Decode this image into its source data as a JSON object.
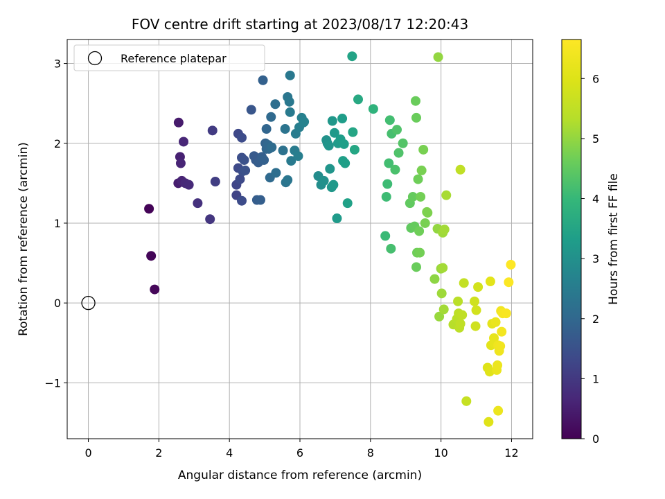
{
  "chart_data": {
    "type": "scatter",
    "title": "FOV centre drift starting at 2023/08/17 12:20:43",
    "xlabel": "Angular distance from reference (arcmin)",
    "ylabel": "Rotation from reference (arcmin)",
    "xlim": [
      -0.6,
      12.6
    ],
    "ylim": [
      -1.7,
      3.3
    ],
    "xticks": [
      "0",
      "2",
      "4",
      "6",
      "8",
      "10",
      "12"
    ],
    "yticks": [
      "−1",
      "0",
      "1",
      "2",
      "3"
    ],
    "grid": true,
    "legend": {
      "placement": "upper-left",
      "entries": [
        "Reference platepar"
      ]
    },
    "reference_point": {
      "x": 0,
      "y": 0
    },
    "colorbar": {
      "label": "Hours from first FF file",
      "min": 0,
      "max": 6.65,
      "ticks": [
        "0",
        "1",
        "2",
        "3",
        "4",
        "5",
        "6"
      ],
      "colormap": "viridis"
    },
    "series": [
      {
        "points": [
          [
            1.72,
            1.18,
            0.05
          ],
          [
            1.78,
            0.59,
            0.08
          ],
          [
            1.88,
            0.17,
            0.1
          ],
          [
            2.56,
            2.26,
            0.45
          ],
          [
            2.55,
            1.5,
            0.5
          ],
          [
            2.6,
            1.83,
            0.55
          ],
          [
            2.65,
            1.53,
            0.6
          ],
          [
            2.62,
            1.75,
            0.62
          ],
          [
            2.7,
            2.02,
            0.65
          ],
          [
            2.75,
            1.5,
            0.68
          ],
          [
            2.85,
            1.48,
            0.7
          ],
          [
            3.1,
            1.25,
            0.85
          ],
          [
            3.45,
            1.05,
            0.95
          ],
          [
            3.52,
            2.16,
            1.05
          ],
          [
            3.6,
            1.52,
            1.1
          ],
          [
            4.2,
            1.35,
            1.2
          ],
          [
            4.2,
            1.48,
            1.25
          ],
          [
            4.25,
            2.12,
            1.3
          ],
          [
            4.25,
            1.69,
            1.35
          ],
          [
            4.3,
            1.55,
            1.35
          ],
          [
            4.35,
            1.28,
            1.4
          ],
          [
            4.35,
            2.07,
            1.4
          ],
          [
            4.35,
            1.82,
            1.45
          ],
          [
            4.38,
            1.65,
            1.45
          ],
          [
            4.42,
            1.79,
            1.5
          ],
          [
            4.45,
            1.66,
            1.5
          ],
          [
            4.62,
            2.42,
            1.6
          ],
          [
            4.7,
            1.84,
            1.7
          ],
          [
            4.75,
            1.79,
            1.7
          ],
          [
            4.78,
            1.29,
            1.75
          ],
          [
            4.82,
            1.76,
            1.75
          ],
          [
            4.88,
            1.29,
            1.8
          ],
          [
            4.92,
            1.83,
            1.8
          ],
          [
            4.95,
            2.79,
            1.85
          ],
          [
            4.98,
            1.79,
            1.85
          ],
          [
            5.02,
            2.0,
            1.9
          ],
          [
            5.05,
            1.93,
            1.95
          ],
          [
            5.05,
            2.18,
            1.95
          ],
          [
            5.1,
            1.98,
            2.0
          ],
          [
            5.12,
            1.93,
            2.0
          ],
          [
            5.15,
            1.57,
            2.05
          ],
          [
            5.18,
            2.33,
            2.05
          ],
          [
            5.2,
            1.95,
            2.1
          ],
          [
            5.3,
            2.49,
            2.15
          ],
          [
            5.32,
            1.63,
            2.15
          ],
          [
            5.52,
            1.91,
            2.25
          ],
          [
            5.58,
            2.18,
            2.3
          ],
          [
            5.6,
            1.51,
            2.3
          ],
          [
            5.65,
            1.54,
            2.35
          ],
          [
            5.65,
            2.58,
            2.35
          ],
          [
            5.7,
            2.52,
            2.4
          ],
          [
            5.72,
            2.85,
            2.4
          ],
          [
            5.72,
            2.39,
            2.45
          ],
          [
            5.75,
            1.78,
            2.45
          ],
          [
            5.85,
            1.91,
            2.5
          ],
          [
            5.88,
            2.12,
            2.5
          ],
          [
            5.95,
            1.84,
            2.55
          ],
          [
            5.98,
            2.2,
            2.55
          ],
          [
            6.05,
            2.32,
            2.6
          ],
          [
            6.1,
            2.26,
            2.6
          ],
          [
            6.12,
            2.27,
            2.65
          ],
          [
            6.52,
            1.59,
            2.9
          ],
          [
            6.6,
            1.48,
            2.95
          ],
          [
            6.68,
            1.53,
            3.0
          ],
          [
            6.75,
            2.04,
            3.05
          ],
          [
            6.78,
            2.0,
            3.05
          ],
          [
            6.82,
            1.97,
            3.1
          ],
          [
            6.85,
            1.68,
            3.1
          ],
          [
            6.9,
            1.45,
            3.15
          ],
          [
            6.92,
            2.28,
            3.15
          ],
          [
            6.95,
            1.48,
            3.2
          ],
          [
            6.98,
            2.13,
            3.2
          ],
          [
            7.05,
            1.06,
            3.25
          ],
          [
            7.08,
            2.0,
            3.25
          ],
          [
            7.15,
            2.05,
            3.3
          ],
          [
            7.2,
            2.31,
            3.3
          ],
          [
            7.22,
            1.78,
            3.35
          ],
          [
            7.25,
            1.99,
            3.35
          ],
          [
            7.28,
            1.75,
            3.35
          ],
          [
            7.35,
            1.25,
            3.4
          ],
          [
            7.48,
            3.09,
            3.45
          ],
          [
            7.5,
            2.14,
            3.5
          ],
          [
            7.55,
            1.92,
            3.55
          ],
          [
            7.65,
            2.55,
            3.6
          ],
          [
            8.08,
            2.43,
            3.85
          ],
          [
            8.42,
            0.84,
            4.05
          ],
          [
            8.45,
            1.33,
            4.1
          ],
          [
            8.48,
            1.49,
            4.1
          ],
          [
            8.52,
            1.75,
            4.15
          ],
          [
            8.55,
            2.29,
            4.15
          ],
          [
            8.58,
            0.68,
            4.2
          ],
          [
            8.6,
            2.12,
            4.2
          ],
          [
            8.7,
            1.67,
            4.25
          ],
          [
            8.75,
            2.17,
            4.3
          ],
          [
            8.8,
            1.88,
            4.3
          ],
          [
            8.92,
            2.0,
            4.35
          ],
          [
            9.12,
            1.25,
            4.5
          ],
          [
            9.15,
            0.94,
            4.5
          ],
          [
            9.2,
            1.33,
            4.55
          ],
          [
            9.25,
            0.96,
            4.55
          ],
          [
            9.28,
            2.53,
            4.6
          ],
          [
            9.3,
            2.32,
            4.6
          ],
          [
            9.3,
            0.45,
            4.6
          ],
          [
            9.32,
            0.63,
            4.65
          ],
          [
            9.35,
            1.55,
            4.65
          ],
          [
            9.38,
            0.9,
            4.65
          ],
          [
            9.4,
            0.63,
            4.7
          ],
          [
            9.42,
            1.33,
            4.7
          ],
          [
            9.45,
            1.66,
            4.75
          ],
          [
            9.5,
            1.92,
            4.75
          ],
          [
            9.55,
            1.0,
            4.75
          ],
          [
            9.6,
            1.14,
            4.8
          ],
          [
            9.62,
            1.13,
            4.8
          ],
          [
            9.82,
            0.3,
            4.95
          ],
          [
            9.9,
            0.93,
            5.0
          ],
          [
            9.92,
            3.08,
            5.0
          ],
          [
            9.95,
            -0.17,
            5.05
          ],
          [
            10.0,
            0.43,
            5.05
          ],
          [
            10.02,
            0.12,
            5.1
          ],
          [
            10.05,
            0.88,
            5.1
          ],
          [
            10.05,
            0.44,
            5.15
          ],
          [
            10.08,
            -0.08,
            5.15
          ],
          [
            10.1,
            0.92,
            5.15
          ],
          [
            10.15,
            1.35,
            5.2
          ],
          [
            10.35,
            -0.27,
            5.35
          ],
          [
            10.45,
            -0.2,
            5.4
          ],
          [
            10.48,
            0.02,
            5.4
          ],
          [
            10.5,
            -0.13,
            5.45
          ],
          [
            10.52,
            -0.31,
            5.45
          ],
          [
            10.55,
            1.67,
            5.5
          ],
          [
            10.55,
            -0.26,
            5.5
          ],
          [
            10.6,
            -0.15,
            5.5
          ],
          [
            10.65,
            0.25,
            5.55
          ],
          [
            10.72,
            -1.23,
            5.6
          ],
          [
            10.95,
            0.02,
            5.75
          ],
          [
            10.98,
            -0.29,
            5.75
          ],
          [
            11.0,
            -0.09,
            5.8
          ],
          [
            11.05,
            0.2,
            5.8
          ],
          [
            11.32,
            -0.81,
            6.0
          ],
          [
            11.35,
            -1.49,
            6.05
          ],
          [
            11.38,
            -0.86,
            6.05
          ],
          [
            11.4,
            0.27,
            6.1
          ],
          [
            11.42,
            -0.53,
            6.1
          ],
          [
            11.45,
            -0.26,
            6.15
          ],
          [
            11.5,
            -0.44,
            6.2
          ],
          [
            11.52,
            -0.51,
            6.2
          ],
          [
            11.55,
            -0.24,
            6.25
          ],
          [
            11.58,
            -0.84,
            6.25
          ],
          [
            11.6,
            -0.78,
            6.3
          ],
          [
            11.62,
            -1.35,
            6.3
          ],
          [
            11.62,
            -0.53,
            6.35
          ],
          [
            11.65,
            -0.6,
            6.35
          ],
          [
            11.68,
            -0.54,
            6.4
          ],
          [
            11.7,
            -0.1,
            6.4
          ],
          [
            11.72,
            -0.36,
            6.45
          ],
          [
            11.75,
            -0.13,
            6.5
          ],
          [
            11.85,
            -0.13,
            6.55
          ],
          [
            11.92,
            0.26,
            6.6
          ],
          [
            11.98,
            0.48,
            6.65
          ]
        ]
      }
    ]
  }
}
